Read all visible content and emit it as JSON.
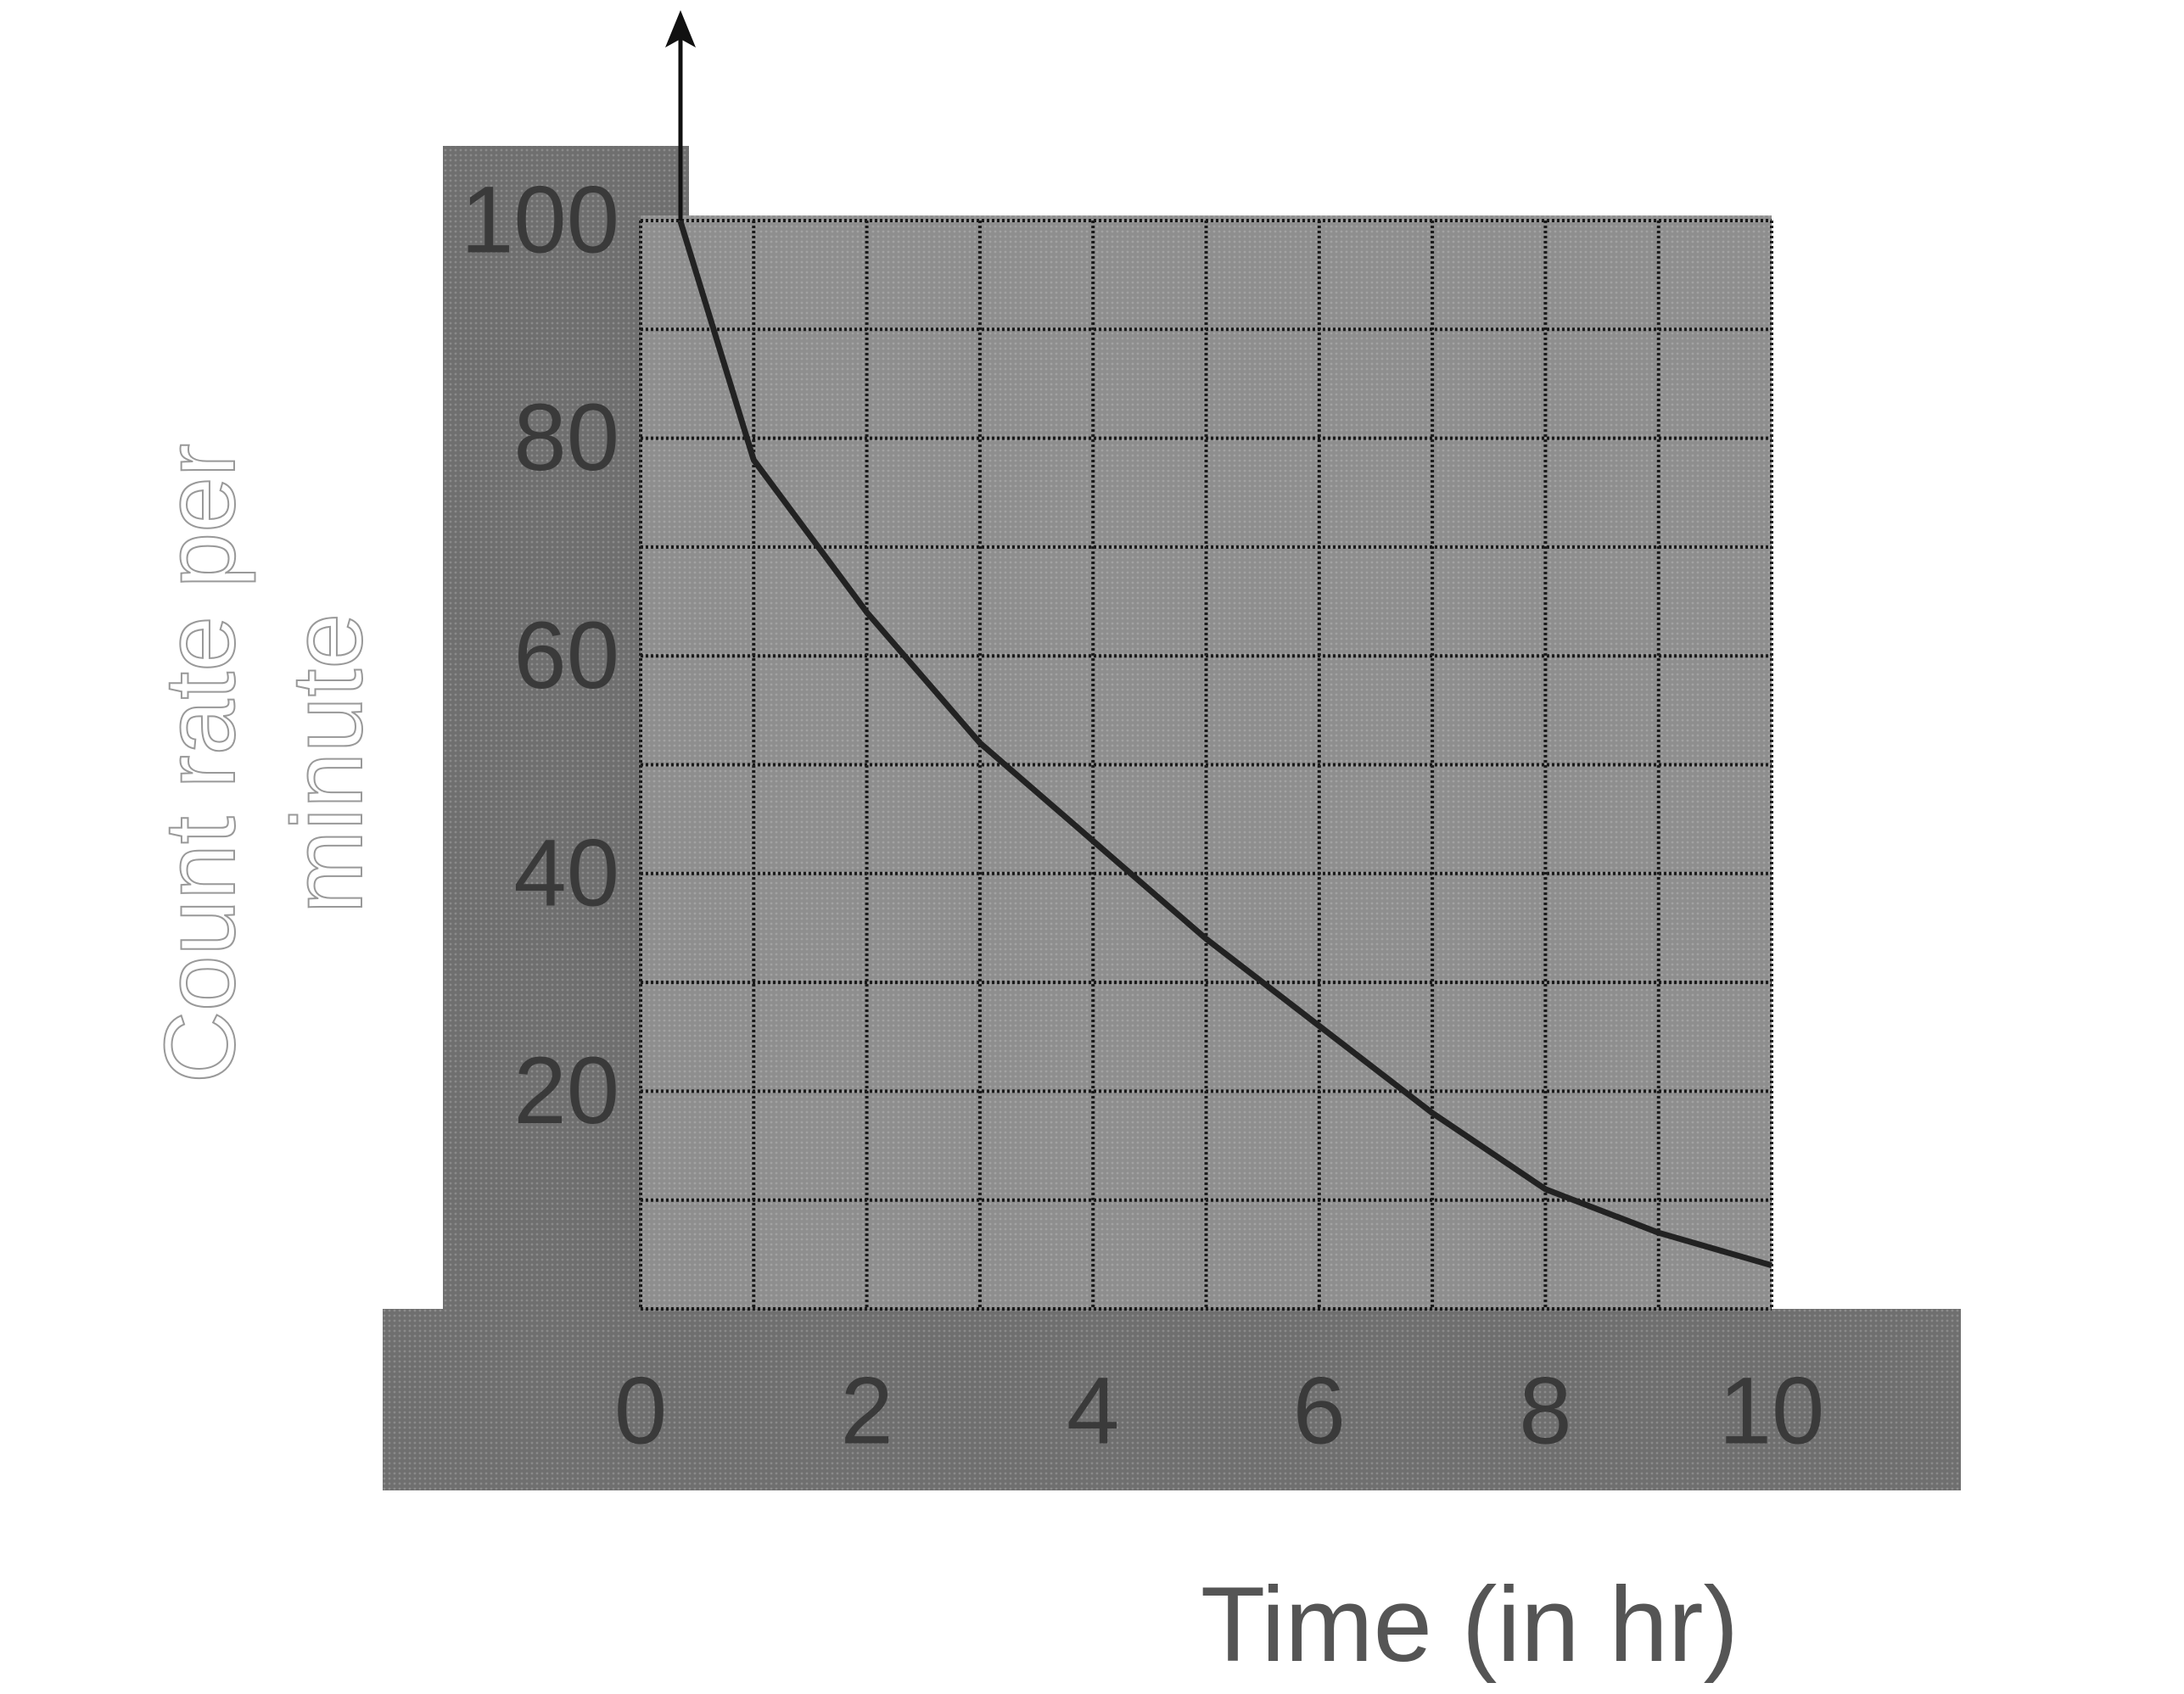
{
  "chart_data": {
    "type": "line",
    "xlabel": "Time (in hr)",
    "ylabel": [
      "Count rate per",
      "minute"
    ],
    "x": [
      0.35,
      1,
      2,
      3,
      4,
      5,
      6,
      7,
      8,
      9,
      10
    ],
    "series": [
      {
        "color": "#222222",
        "values": [
          100,
          78,
          64,
          52,
          43,
          34,
          26,
          18,
          11,
          7,
          4
        ]
      }
    ],
    "xlim": [
      0,
      10
    ],
    "ylim": [
      0,
      100
    ],
    "xticks": [
      0,
      2,
      4,
      6,
      8,
      10
    ],
    "yticks": [
      20,
      40,
      60,
      80,
      100
    ],
    "grid": true
  }
}
